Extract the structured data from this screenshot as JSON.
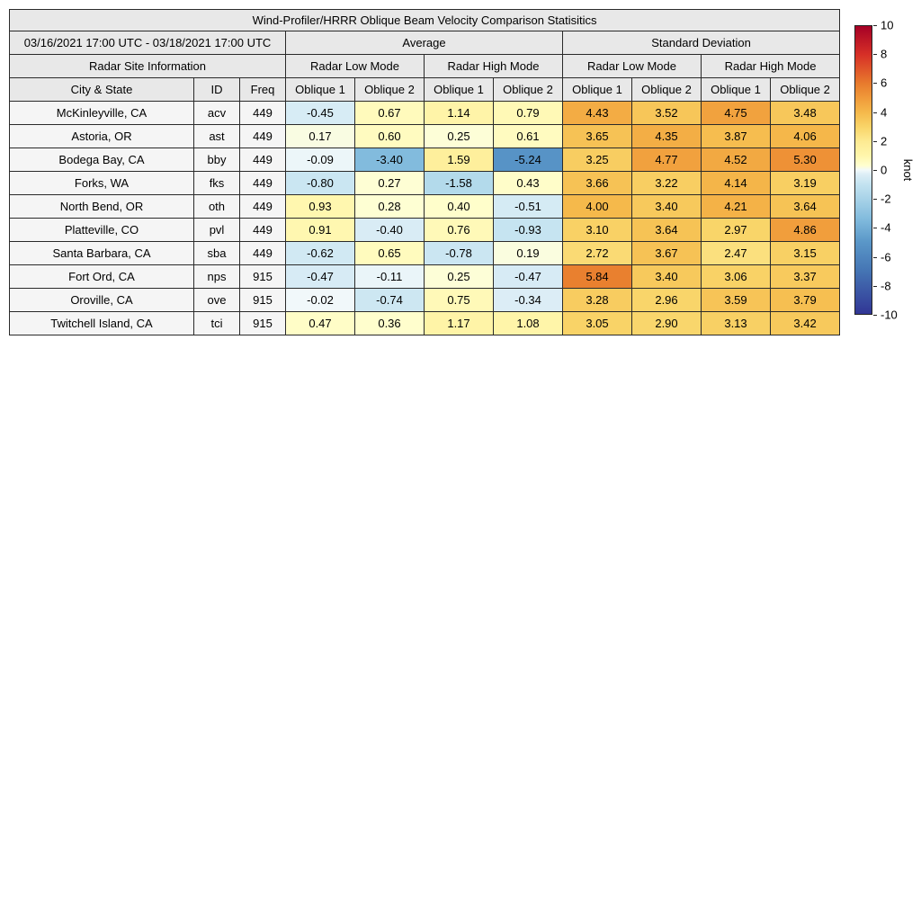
{
  "title": "Wind-Profiler/HRRR Oblique Beam Velocity Comparison Statisitics",
  "header": {
    "date_range": "03/16/2021 17:00 UTC - 03/18/2021 17:00 UTC",
    "group_average": "Average",
    "group_std": "Standard Deviation",
    "site_info": "Radar Site Information",
    "low_mode": "Radar Low Mode",
    "high_mode": "Radar High Mode",
    "col_city": "City & State",
    "col_id": "ID",
    "col_freq": "Freq",
    "col_oblique1": "Oblique 1",
    "col_oblique2": "Oblique 2"
  },
  "colorbar": {
    "label": "knot",
    "min": -10,
    "max": 10,
    "ticks": [
      "10",
      "8",
      "6",
      "4",
      "2",
      "0",
      "-2",
      "-4",
      "-6",
      "-8",
      "-10"
    ],
    "stops": [
      [
        -10,
        "#313695"
      ],
      [
        -7,
        "#4575b4"
      ],
      [
        -5,
        "#5a97c8"
      ],
      [
        -3.5,
        "#7fb9dc"
      ],
      [
        -2,
        "#a8d3e8"
      ],
      [
        -1,
        "#c3e3f0"
      ],
      [
        -0.3,
        "#ddeef6"
      ],
      [
        0,
        "#f2f9fa"
      ],
      [
        0.3,
        "#ffffd0"
      ],
      [
        1,
        "#fff6ab"
      ],
      [
        2,
        "#fdea92"
      ],
      [
        3,
        "#f9d468"
      ],
      [
        4,
        "#f5b94b"
      ],
      [
        5,
        "#f09a3a"
      ],
      [
        6,
        "#e87b2d"
      ],
      [
        8,
        "#d73027"
      ],
      [
        10,
        "#a50026"
      ]
    ]
  },
  "chart_data": {
    "type": "heatmap",
    "unit": "knot",
    "color_range": [
      -10,
      10
    ],
    "value_columns": [
      "Average Radar Low Mode Oblique 1",
      "Average Radar Low Mode Oblique 2",
      "Average Radar High Mode Oblique 1",
      "Average Radar High Mode Oblique 2",
      "Std Dev Radar Low Mode Oblique 1",
      "Std Dev Radar Low Mode Oblique 2",
      "Std Dev Radar High Mode Oblique 1",
      "Std Dev Radar High Mode Oblique 2"
    ],
    "rows": [
      {
        "city": "McKinleyville, CA",
        "id": "acv",
        "freq": "449",
        "values": [
          -0.45,
          0.67,
          1.14,
          0.79,
          4.43,
          3.52,
          4.75,
          3.48
        ]
      },
      {
        "city": "Astoria, OR",
        "id": "ast",
        "freq": "449",
        "values": [
          0.17,
          0.6,
          0.25,
          0.61,
          3.65,
          4.35,
          3.87,
          4.06
        ]
      },
      {
        "city": "Bodega Bay, CA",
        "id": "bby",
        "freq": "449",
        "values": [
          -0.09,
          -3.4,
          1.59,
          -5.24,
          3.25,
          4.77,
          4.52,
          5.3
        ]
      },
      {
        "city": "Forks, WA",
        "id": "fks",
        "freq": "449",
        "values": [
          -0.8,
          0.27,
          -1.58,
          0.43,
          3.66,
          3.22,
          4.14,
          3.19
        ]
      },
      {
        "city": "North Bend, OR",
        "id": "oth",
        "freq": "449",
        "values": [
          0.93,
          0.28,
          0.4,
          -0.51,
          4.0,
          3.4,
          4.21,
          3.64
        ]
      },
      {
        "city": "Platteville, CO",
        "id": "pvl",
        "freq": "449",
        "values": [
          0.91,
          -0.4,
          0.76,
          -0.93,
          3.1,
          3.64,
          2.97,
          4.86
        ]
      },
      {
        "city": "Santa Barbara, CA",
        "id": "sba",
        "freq": "449",
        "values": [
          -0.62,
          0.65,
          -0.78,
          0.19,
          2.72,
          3.67,
          2.47,
          3.15
        ]
      },
      {
        "city": "Fort Ord, CA",
        "id": "nps",
        "freq": "915",
        "values": [
          -0.47,
          -0.11,
          0.25,
          -0.47,
          5.84,
          3.4,
          3.06,
          3.37
        ]
      },
      {
        "city": "Oroville, CA",
        "id": "ove",
        "freq": "915",
        "values": [
          -0.02,
          -0.74,
          0.75,
          -0.34,
          3.28,
          2.96,
          3.59,
          3.79
        ]
      },
      {
        "city": "Twitchell Island, CA",
        "id": "tci",
        "freq": "915",
        "values": [
          0.47,
          0.36,
          1.17,
          1.08,
          3.05,
          2.9,
          3.13,
          3.42
        ]
      }
    ]
  }
}
